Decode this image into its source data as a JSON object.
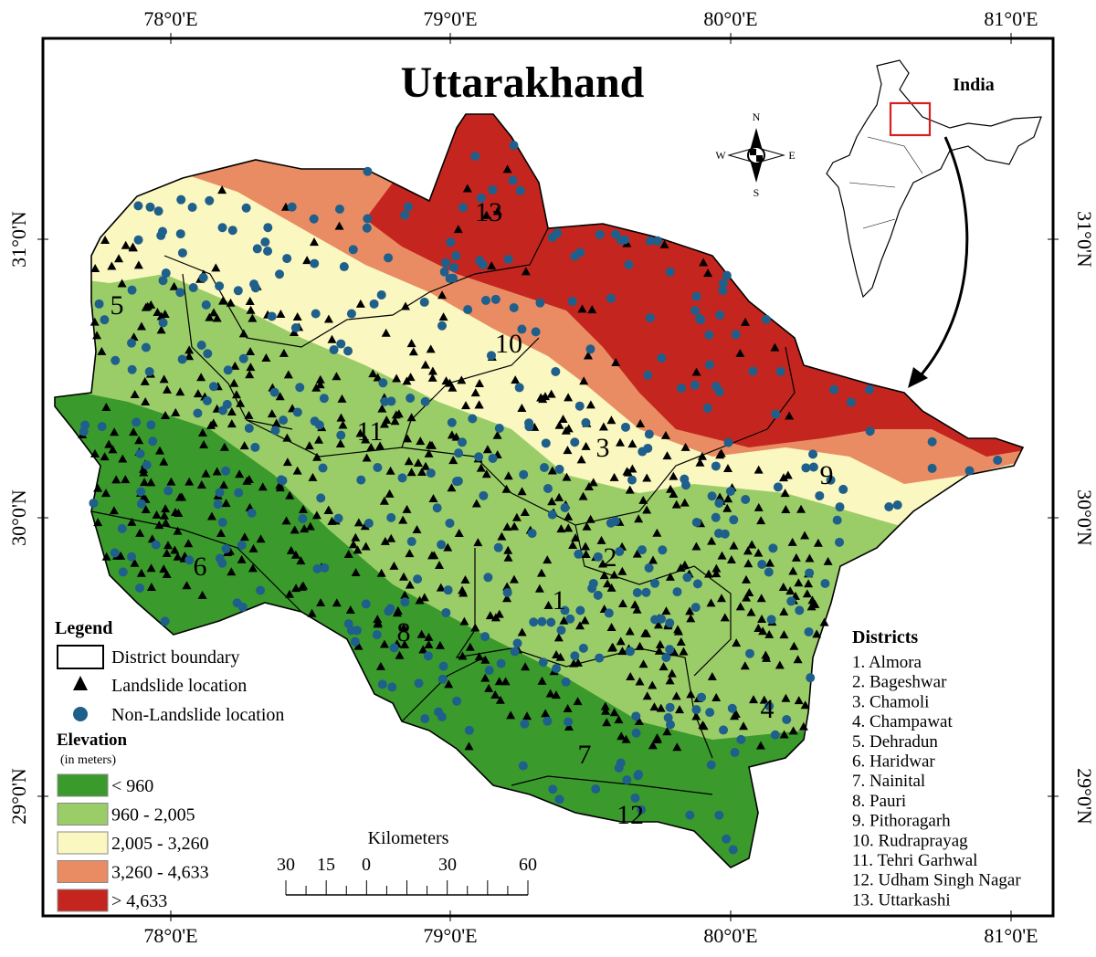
{
  "header": {
    "title": "Uttarakhand"
  },
  "inset": {
    "label": "India"
  },
  "compass": {
    "n": "N",
    "s": "S",
    "e": "E",
    "w": "W"
  },
  "graticule": {
    "lon_labels": [
      "78°0'E",
      "79°0'E",
      "80°0'E",
      "81°0'E"
    ],
    "lat_labels": [
      "31°0'N",
      "30°0'N",
      "29°0'N"
    ]
  },
  "map_labels": [
    "1",
    "2",
    "3",
    "4",
    "5",
    "6",
    "7",
    "8",
    "9",
    "10",
    "11",
    "12",
    "13"
  ],
  "legend": {
    "title": "Legend",
    "items": [
      "District boundary",
      "Landslide location",
      "Non-Landslide location"
    ]
  },
  "elevation": {
    "title": "Elevation",
    "subtitle": "(in meters)",
    "classes": [
      "< 960",
      "960 - 2,005",
      "2,005 - 3,260",
      "3,260 - 4,633",
      "> 4,633"
    ]
  },
  "scale_bar": {
    "title": "Kilometers",
    "labels": [
      "30",
      "15",
      "0",
      "30",
      "60"
    ]
  },
  "districts": {
    "title": "Districts",
    "items": [
      "1. Almora",
      "2. Bageshwar",
      "3. Chamoli",
      "4. Champawat",
      "5. Dehradun",
      "6. Haridwar",
      "7. Nainital",
      "8. Pauri",
      "9. Pithoragarh",
      "10. Rudraprayag",
      "11. Tehri Garhwal",
      "12. Udham Singh Nagar",
      "13. Uttarkashi"
    ]
  }
}
